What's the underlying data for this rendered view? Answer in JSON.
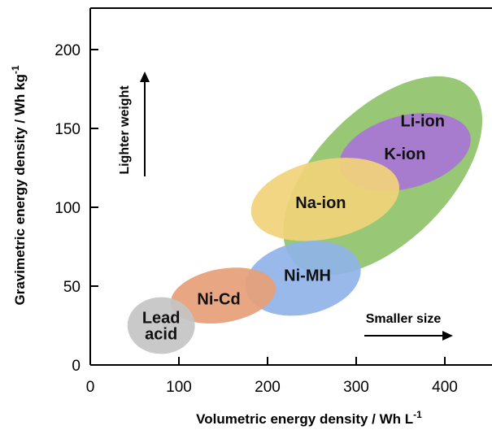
{
  "chart_data": {
    "type": "scatter",
    "title": "",
    "xlabel": "Volumetric energy density / Wh L",
    "xlabel_sup": "-1",
    "ylabel": "Gravimetric energy density / Wh kg",
    "ylabel_sup": "-1",
    "xlim": [
      0,
      450
    ],
    "ylim": [
      0,
      225
    ],
    "xticks": [
      "0",
      "100",
      "200",
      "300",
      "400"
    ],
    "yticks": [
      "0",
      "50",
      "100",
      "150",
      "200"
    ],
    "grid": false,
    "regions": [
      {
        "name": "Li-ion",
        "label_lines": [
          "Li-ion"
        ],
        "cx": 330,
        "cy": 120,
        "rx": 140,
        "ry": 42,
        "angle_deg": -45,
        "color": "#8fc26a",
        "label_at": [
          375,
          155
        ]
      },
      {
        "name": "K-ion",
        "label_lines": [
          "K-ion"
        ],
        "cx": 355,
        "cy": 135,
        "rx": 76,
        "ry": 23,
        "angle_deg": -15,
        "color": "#a875d6",
        "label_at": [
          355,
          134
        ]
      },
      {
        "name": "Na-ion",
        "label_lines": [
          "Na-ion"
        ],
        "cx": 265,
        "cy": 105,
        "rx": 85,
        "ry": 25,
        "angle_deg": -12,
        "color": "#f1d27a",
        "label_at": [
          260,
          103
        ]
      },
      {
        "name": "Ni-MH",
        "label_lines": [
          "Ni-MH"
        ],
        "cx": 240,
        "cy": 55,
        "rx": 66,
        "ry": 23,
        "angle_deg": -12,
        "color": "#8fb3e8",
        "label_at": [
          245,
          57
        ]
      },
      {
        "name": "Ni-Cd",
        "label_lines": [
          "Ni-Cd"
        ],
        "cx": 150,
        "cy": 44,
        "rx": 60,
        "ry": 17,
        "angle_deg": -10,
        "color": "#e6a077",
        "label_at": [
          145,
          42
        ]
      },
      {
        "name": "Lead acid",
        "label_lines": [
          "Lead",
          "acid"
        ],
        "cx": 80,
        "cy": 25,
        "rx": 38,
        "ry": 18,
        "angle_deg": 0,
        "color": "#c4c4c4",
        "label_at": [
          80,
          25
        ]
      }
    ],
    "annotations": [
      {
        "text": "Lighter weight",
        "arrow": "up"
      },
      {
        "text": "Smaller size",
        "arrow": "right"
      }
    ]
  }
}
